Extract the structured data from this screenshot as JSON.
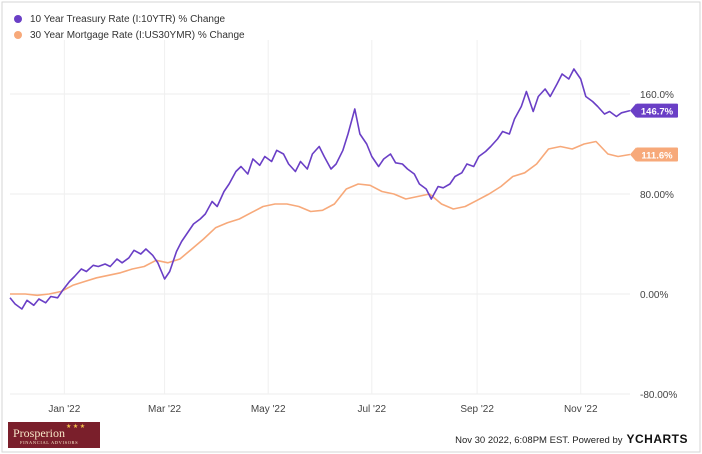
{
  "chart_data": {
    "type": "line",
    "title": "",
    "xlabel": "",
    "ylabel": "",
    "ylim": [
      -80,
      200
    ],
    "y_ticks": [
      "160.0%",
      "80.00%",
      "0.00%",
      "-80.00%"
    ],
    "y_tick_values": [
      160,
      80,
      0,
      -80
    ],
    "x_ticks": [
      "Jan '22",
      "Mar '22",
      "May '22",
      "Jul '22",
      "Sep '22",
      "Nov '22"
    ],
    "x_tick_dates": [
      "2022-01-01",
      "2022-03-01",
      "2022-05-01",
      "2022-07-01",
      "2022-09-01",
      "2022-11-01"
    ],
    "xlim": [
      "2021-11-30",
      "2022-11-30"
    ],
    "grid": true,
    "legend": "top-left",
    "series": [
      {
        "name": "10 Year Treasury Rate (I:10YTR) % Change",
        "color": "#6a3fc6",
        "end_label": "146.7%",
        "x": [
          "2021-11-30",
          "2021-12-03",
          "2021-12-07",
          "2021-12-10",
          "2021-12-14",
          "2021-12-17",
          "2021-12-21",
          "2021-12-24",
          "2021-12-28",
          "2021-12-31",
          "2022-01-04",
          "2022-01-07",
          "2022-01-11",
          "2022-01-14",
          "2022-01-18",
          "2022-01-21",
          "2022-01-25",
          "2022-01-28",
          "2022-02-01",
          "2022-02-04",
          "2022-02-08",
          "2022-02-11",
          "2022-02-15",
          "2022-02-18",
          "2022-02-22",
          "2022-02-25",
          "2022-03-01",
          "2022-03-04",
          "2022-03-08",
          "2022-03-11",
          "2022-03-15",
          "2022-03-18",
          "2022-03-22",
          "2022-03-25",
          "2022-03-29",
          "2022-04-01",
          "2022-04-05",
          "2022-04-08",
          "2022-04-12",
          "2022-04-15",
          "2022-04-19",
          "2022-04-22",
          "2022-04-26",
          "2022-04-29",
          "2022-05-03",
          "2022-05-06",
          "2022-05-10",
          "2022-05-13",
          "2022-05-17",
          "2022-05-20",
          "2022-05-24",
          "2022-05-27",
          "2022-05-31",
          "2022-06-03",
          "2022-06-07",
          "2022-06-10",
          "2022-06-14",
          "2022-06-17",
          "2022-06-21",
          "2022-06-24",
          "2022-06-28",
          "2022-07-01",
          "2022-07-05",
          "2022-07-08",
          "2022-07-12",
          "2022-07-15",
          "2022-07-19",
          "2022-07-22",
          "2022-07-26",
          "2022-07-29",
          "2022-08-02",
          "2022-08-05",
          "2022-08-09",
          "2022-08-12",
          "2022-08-16",
          "2022-08-19",
          "2022-08-23",
          "2022-08-26",
          "2022-08-30",
          "2022-09-02",
          "2022-09-06",
          "2022-09-09",
          "2022-09-13",
          "2022-09-16",
          "2022-09-20",
          "2022-09-23",
          "2022-09-27",
          "2022-09-30",
          "2022-10-04",
          "2022-10-07",
          "2022-10-11",
          "2022-10-14",
          "2022-10-18",
          "2022-10-21",
          "2022-10-25",
          "2022-10-28",
          "2022-11-01",
          "2022-11-04",
          "2022-11-08",
          "2022-11-11",
          "2022-11-15",
          "2022-11-18",
          "2022-11-22",
          "2022-11-25",
          "2022-11-30"
        ],
        "values": [
          -3,
          -8,
          -12,
          -5,
          -9,
          -4,
          -7,
          -2,
          -3,
          3,
          10,
          14,
          20,
          18,
          23,
          22,
          24,
          22,
          28,
          25,
          29,
          35,
          32,
          36,
          31,
          25,
          12,
          18,
          34,
          42,
          50,
          56,
          60,
          64,
          74,
          70,
          82,
          88,
          98,
          102,
          96,
          108,
          103,
          110,
          106,
          115,
          112,
          104,
          98,
          106,
          100,
          112,
          118,
          110,
          100,
          104,
          115,
          128,
          148,
          128,
          120,
          110,
          102,
          108,
          112,
          105,
          104,
          100,
          96,
          88,
          84,
          76,
          86,
          85,
          88,
          94,
          97,
          104,
          102,
          110,
          114,
          118,
          124,
          130,
          128,
          140,
          150,
          162,
          146,
          158,
          164,
          158,
          168,
          176,
          172,
          180,
          172,
          158,
          154,
          150,
          144,
          146,
          142,
          145,
          146.7
        ]
      },
      {
        "name": "30 Year Mortgage Rate (I:US30YMR) % Change",
        "color": "#f7a97a",
        "end_label": "111.6%",
        "x": [
          "2021-11-30",
          "2021-12-09",
          "2021-12-16",
          "2021-12-23",
          "2021-12-30",
          "2022-01-06",
          "2022-01-13",
          "2022-01-20",
          "2022-01-27",
          "2022-02-03",
          "2022-02-10",
          "2022-02-17",
          "2022-02-24",
          "2022-03-03",
          "2022-03-10",
          "2022-03-17",
          "2022-03-24",
          "2022-03-31",
          "2022-04-07",
          "2022-04-14",
          "2022-04-21",
          "2022-04-28",
          "2022-05-05",
          "2022-05-12",
          "2022-05-19",
          "2022-05-26",
          "2022-06-02",
          "2022-06-09",
          "2022-06-16",
          "2022-06-23",
          "2022-06-30",
          "2022-07-07",
          "2022-07-14",
          "2022-07-21",
          "2022-07-28",
          "2022-08-04",
          "2022-08-11",
          "2022-08-18",
          "2022-08-25",
          "2022-09-01",
          "2022-09-08",
          "2022-09-15",
          "2022-09-22",
          "2022-09-29",
          "2022-10-06",
          "2022-10-13",
          "2022-10-20",
          "2022-10-27",
          "2022-11-03",
          "2022-11-10",
          "2022-11-17",
          "2022-11-23",
          "2022-11-30"
        ],
        "values": [
          0,
          0,
          -1,
          0,
          2,
          7,
          10,
          13,
          15,
          17,
          20,
          22,
          27,
          25,
          28,
          36,
          44,
          53,
          57,
          60,
          65,
          70,
          72,
          72,
          70,
          66,
          67,
          72,
          84,
          88,
          87,
          82,
          80,
          76,
          78,
          80,
          72,
          68,
          70,
          75,
          80,
          86,
          94,
          97,
          104,
          116,
          118,
          116,
          120,
          122,
          112,
          110,
          111.6
        ]
      }
    ]
  },
  "footer": {
    "timestamp": "Nov 30 2022, 6:08PM EST. Powered by",
    "logo": "YCHARTS"
  },
  "brand": {
    "name": "Prosperion",
    "sub": "FINANCIAL ADVISORS"
  }
}
